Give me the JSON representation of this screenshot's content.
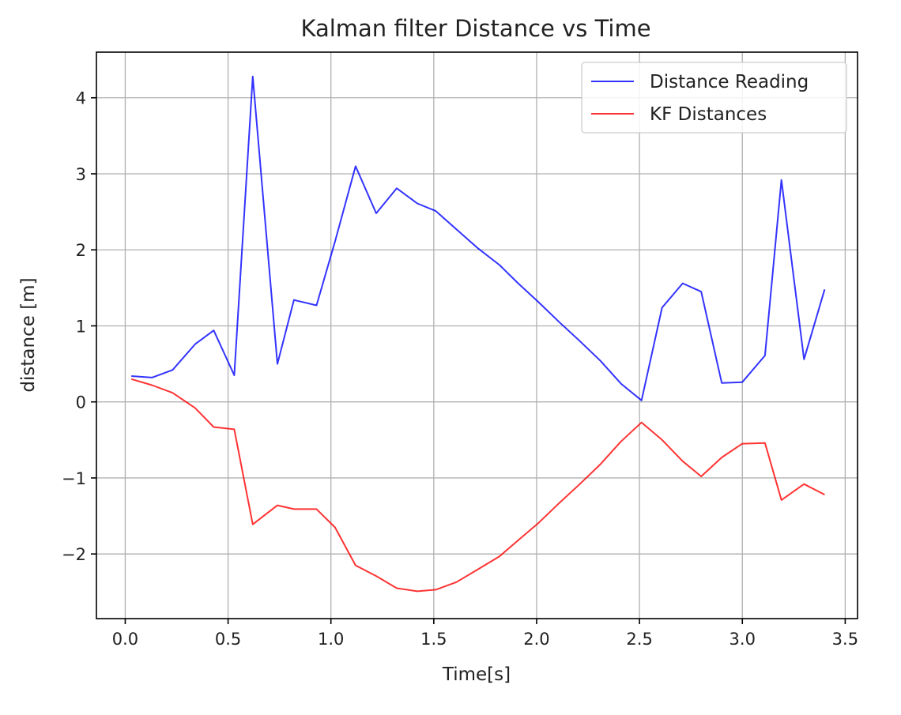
{
  "chart_data": {
    "type": "line",
    "title": "Kalman filter Distance vs Time",
    "xlabel": "Time[s]",
    "ylabel": "distance [m]",
    "xlim": [
      -0.14,
      3.56
    ],
    "ylim": [
      -2.85,
      4.6
    ],
    "xticks": [
      0.0,
      0.5,
      1.0,
      1.5,
      2.0,
      2.5,
      3.0,
      3.5
    ],
    "xtick_labels": [
      "0.0",
      "0.5",
      "1.0",
      "1.5",
      "2.0",
      "2.5",
      "3.0",
      "3.5"
    ],
    "yticks": [
      -2,
      -1,
      0,
      1,
      2,
      3,
      4
    ],
    "ytick_labels": [
      "−2",
      "−1",
      "0",
      "1",
      "2",
      "3",
      "4"
    ],
    "grid": true,
    "legend_position": "top-right",
    "x": [
      0.03,
      0.13,
      0.23,
      0.34,
      0.43,
      0.53,
      0.62,
      0.74,
      0.82,
      0.93,
      1.02,
      1.12,
      1.22,
      1.32,
      1.42,
      1.51,
      1.61,
      1.71,
      1.82,
      1.91,
      2.01,
      2.11,
      2.21,
      2.31,
      2.41,
      2.51,
      2.61,
      2.71,
      2.8,
      2.9,
      3.0,
      3.11,
      3.19,
      3.3,
      3.4
    ],
    "series": [
      {
        "name": "Distance Reading",
        "color": "#0000ff",
        "values": [
          0.34,
          0.32,
          0.42,
          0.76,
          0.94,
          0.35,
          4.28,
          0.5,
          1.34,
          1.27,
          2.11,
          3.1,
          2.48,
          2.81,
          2.61,
          2.51,
          2.27,
          2.03,
          1.8,
          1.56,
          1.31,
          1.05,
          0.8,
          0.54,
          0.24,
          0.02,
          1.24,
          1.56,
          1.45,
          0.25,
          0.26,
          0.61,
          2.92,
          0.56,
          1.48
        ]
      },
      {
        "name": "KF Distances",
        "color": "#ff0000",
        "values": [
          0.3,
          0.22,
          0.12,
          -0.08,
          -0.33,
          -0.36,
          -1.61,
          -1.36,
          -1.41,
          -1.41,
          -1.65,
          -2.15,
          -2.29,
          -2.45,
          -2.49,
          -2.47,
          -2.37,
          -2.21,
          -2.03,
          -1.82,
          -1.59,
          -1.33,
          -1.08,
          -0.82,
          -0.52,
          -0.27,
          -0.5,
          -0.78,
          -0.98,
          -0.73,
          -0.55,
          -0.54,
          -1.29,
          -1.08,
          -1.22
        ]
      }
    ]
  }
}
